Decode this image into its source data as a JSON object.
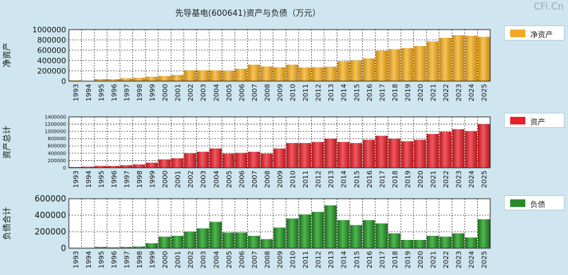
{
  "title": "先导基电(600641)资产与负债（万元）",
  "logo": "CFi.Cn",
  "chart_data": [
    {
      "type": "bar",
      "id": "net-assets",
      "ylabel": "净资产",
      "legend": "净资产",
      "color": "#f2a623",
      "ylim": [
        0,
        1000000
      ],
      "yticks": [
        0,
        200000,
        400000,
        600000,
        800000,
        1000000
      ],
      "ytick_labels": [
        "0",
        "200000",
        "400000",
        "600000",
        "800000",
        "1000000"
      ],
      "categories": [
        "1993",
        "1994",
        "1995",
        "1996",
        "1997",
        "1998",
        "1999",
        "2000",
        "2001",
        "2002",
        "2003",
        "2004",
        "2005",
        "2006",
        "2007",
        "2008",
        "2009",
        "2010",
        "2011",
        "2012",
        "2013",
        "2014",
        "2015",
        "2016",
        "2017",
        "2018",
        "2019",
        "2020",
        "2021",
        "2022",
        "2023",
        "2024",
        "2025"
      ],
      "values": [
        15000,
        5000,
        40000,
        40000,
        55000,
        65000,
        85000,
        100000,
        120000,
        210000,
        210000,
        210000,
        200000,
        240000,
        320000,
        285000,
        270000,
        320000,
        265000,
        270000,
        280000,
        385000,
        400000,
        440000,
        590000,
        620000,
        640000,
        680000,
        770000,
        840000,
        890000,
        880000,
        860000
      ]
    },
    {
      "type": "bar",
      "id": "total-assets",
      "ylabel": "资产总计",
      "legend": "资产",
      "color": "#e8202a",
      "ylim": [
        0,
        1400000
      ],
      "yticks": [
        0,
        200000,
        400000,
        600000,
        800000,
        1000000,
        1200000,
        1400000
      ],
      "ytick_labels": [
        "0",
        "200000",
        "400000",
        "600000",
        "800000",
        "1000000",
        "1200000",
        "1400000"
      ],
      "categories": [
        "1993",
        "1994",
        "1995",
        "1996",
        "1997",
        "1998",
        "1999",
        "2000",
        "2001",
        "2002",
        "2003",
        "2004",
        "2005",
        "2006",
        "2007",
        "2008",
        "2009",
        "2010",
        "2011",
        "2012",
        "2013",
        "2014",
        "2015",
        "2016",
        "2017",
        "2018",
        "2019",
        "2020",
        "2021",
        "2022",
        "2023",
        "2024",
        "2025"
      ],
      "values": [
        20000,
        30000,
        50000,
        50000,
        70000,
        90000,
        140000,
        230000,
        260000,
        400000,
        440000,
        530000,
        390000,
        410000,
        440000,
        390000,
        530000,
        680000,
        680000,
        710000,
        800000,
        710000,
        680000,
        770000,
        880000,
        800000,
        730000,
        770000,
        930000,
        990000,
        1060000,
        1010000,
        1200000
      ]
    },
    {
      "type": "bar",
      "id": "total-liabilities",
      "ylabel": "负债合计",
      "legend": "负债",
      "color": "#2a8a2a",
      "ylim": [
        0,
        600000
      ],
      "yticks": [
        0,
        200000,
        400000,
        600000
      ],
      "ytick_labels": [
        "0",
        "200000",
        "400000",
        "600000"
      ],
      "categories": [
        "1993",
        "1994",
        "1995",
        "1996",
        "1997",
        "1998",
        "1999",
        "2000",
        "2001",
        "2002",
        "2003",
        "2004",
        "2005",
        "2006",
        "2007",
        "2008",
        "2009",
        "2010",
        "2011",
        "2012",
        "2013",
        "2014",
        "2015",
        "2016",
        "2017",
        "2018",
        "2019",
        "2020",
        "2021",
        "2022",
        "2023",
        "2024",
        "2025"
      ],
      "values": [
        5000,
        5000,
        15000,
        10000,
        15000,
        20000,
        60000,
        140000,
        150000,
        200000,
        240000,
        320000,
        190000,
        190000,
        150000,
        110000,
        250000,
        360000,
        410000,
        440000,
        520000,
        340000,
        280000,
        340000,
        300000,
        180000,
        100000,
        100000,
        150000,
        140000,
        180000,
        130000,
        350000
      ]
    }
  ]
}
